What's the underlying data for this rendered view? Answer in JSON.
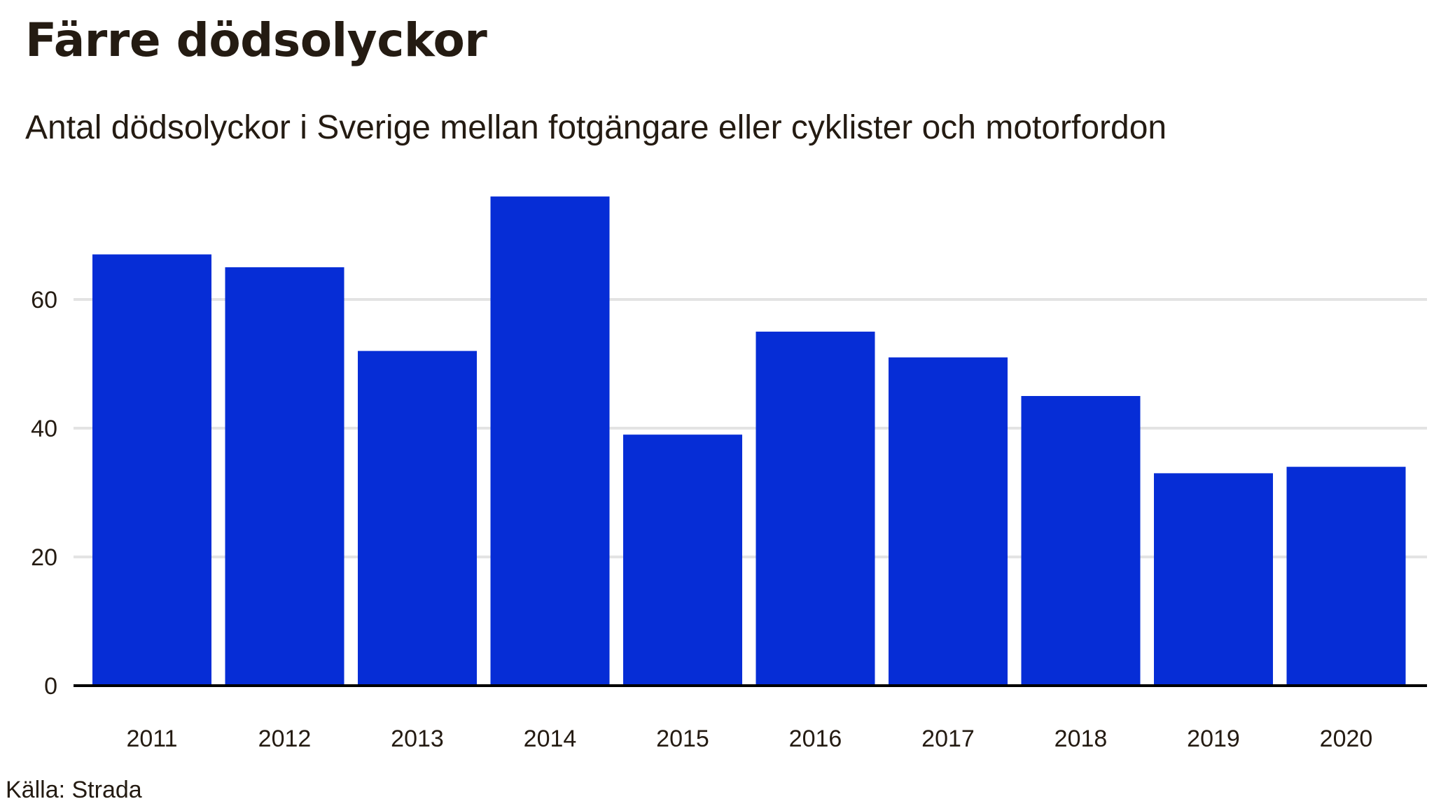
{
  "title": "Färre dödsolyckor",
  "subtitle": "Antal dödsolyckor i Sverige mellan fotgängare eller cyklister och motorfordon",
  "source": "Källa: Strada",
  "colors": {
    "bar": "#062dd6",
    "grid": "#e3e3e3",
    "baseline": "#000000",
    "text": "#241b12"
  },
  "chart_data": {
    "type": "bar",
    "title": "Färre dödsolyckor",
    "subtitle": "Antal dödsolyckor i Sverige mellan fotgängare eller cyklister och motorfordon",
    "categories": [
      "2011",
      "2012",
      "2013",
      "2014",
      "2015",
      "2016",
      "2017",
      "2018",
      "2019",
      "2020"
    ],
    "values": [
      67,
      65,
      52,
      76,
      39,
      55,
      51,
      45,
      33,
      34
    ],
    "xlabel": "",
    "ylabel": "",
    "yticks": [
      0,
      20,
      40,
      60
    ],
    "ylim": [
      0,
      76
    ],
    "grid": true,
    "legend": "none"
  }
}
